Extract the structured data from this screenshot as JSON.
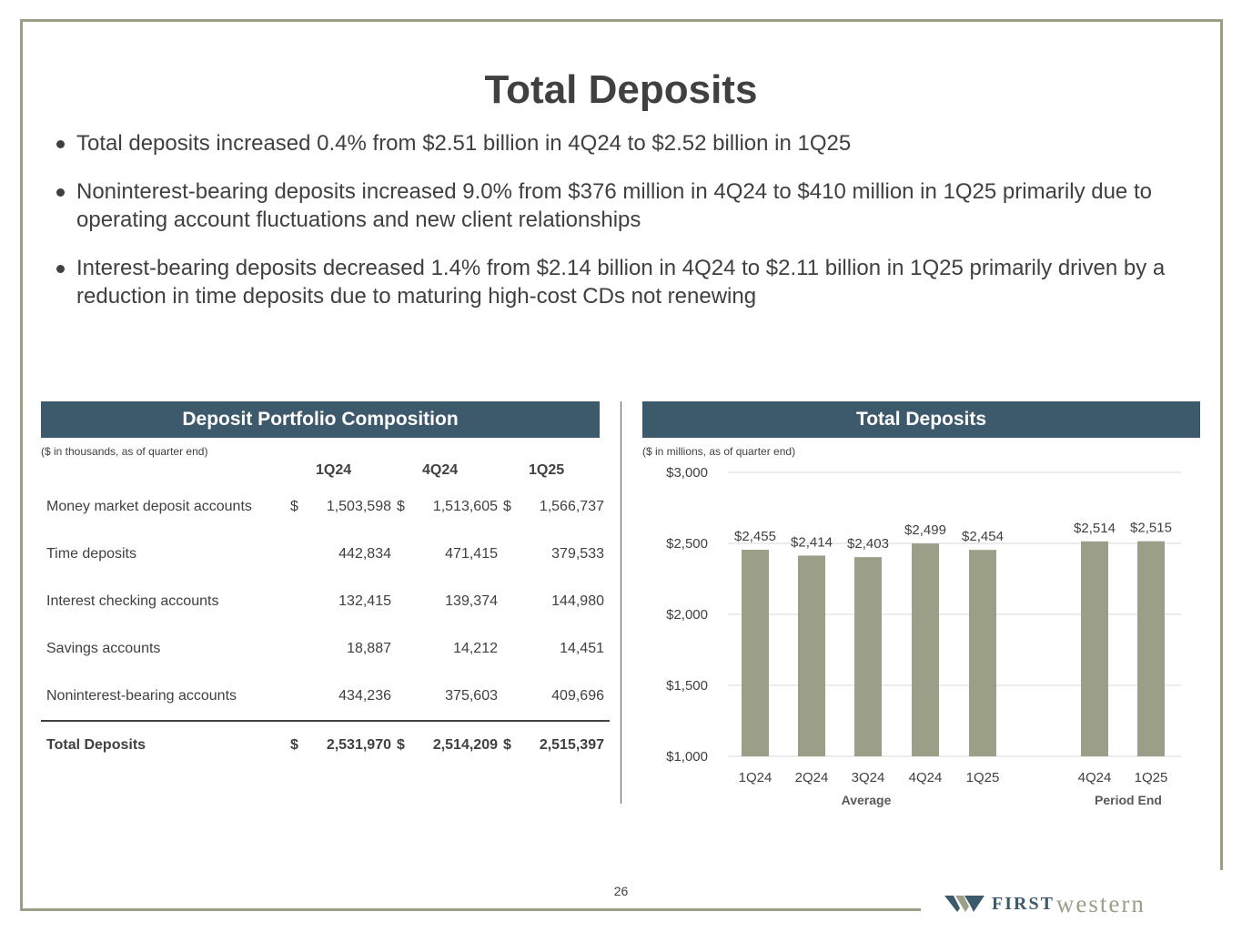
{
  "title": "Total Deposits",
  "bullets": [
    "Total deposits increased 0.4% from $2.51 billion in 4Q24 to $2.52 billion in 1Q25",
    "Noninterest-bearing deposits increased 9.0% from $376 million in 4Q24 to $410 million in 1Q25 primarily due to operating account fluctuations and new client relationships",
    "Interest-bearing deposits decreased 1.4% from $2.14 billion in 4Q24 to $2.11 billion in 1Q25 primarily driven by a reduction in time deposits due to maturing high-cost CDs not renewing"
  ],
  "left_panel": {
    "header": "Deposit Portfolio Composition",
    "note": "($ in thousands, as of quarter end)",
    "columns": [
      "1Q24",
      "4Q24",
      "1Q25"
    ],
    "currency_symbol": "$",
    "rows": [
      {
        "label": "Money market deposit accounts",
        "values": [
          "1,503,598",
          "1,513,605",
          "1,566,737"
        ]
      },
      {
        "label": "Time deposits",
        "values": [
          "442,834",
          "471,415",
          "379,533"
        ]
      },
      {
        "label": "Interest checking accounts",
        "values": [
          "132,415",
          "139,374",
          "144,980"
        ]
      },
      {
        "label": "Savings accounts",
        "values": [
          "18,887",
          "14,212",
          "14,451"
        ]
      },
      {
        "label": "Noninterest-bearing accounts",
        "values": [
          "434,236",
          "375,603",
          "409,696"
        ]
      }
    ],
    "total": {
      "label": "Total Deposits",
      "values": [
        "2,531,970",
        "2,514,209",
        "2,515,397"
      ]
    }
  },
  "right_panel": {
    "header": "Total Deposits",
    "note": "($ in millions, as of quarter end)"
  },
  "chart_data": {
    "type": "bar",
    "categories": [
      "1Q24",
      "2Q24",
      "3Q24",
      "4Q24",
      "1Q25",
      "4Q24",
      "1Q25"
    ],
    "groups": [
      {
        "label": "Average",
        "categories": [
          "1Q24",
          "2Q24",
          "3Q24",
          "4Q24",
          "1Q25"
        ],
        "values": [
          2455,
          2414,
          2403,
          2499,
          2454
        ]
      },
      {
        "label": "Period End",
        "categories": [
          "4Q24",
          "1Q25"
        ],
        "values": [
          2514,
          2515
        ]
      }
    ],
    "values": [
      2455,
      2414,
      2403,
      2499,
      2454,
      2514,
      2515
    ],
    "data_labels": [
      "$2,455",
      "$2,414",
      "$2,403",
      "$2,499",
      "$2,454",
      "$2,514",
      "$2,515"
    ],
    "ylim": [
      1000,
      3000
    ],
    "yticks": [
      1000,
      1500,
      2000,
      2500,
      3000
    ],
    "ytick_labels": [
      "$1,000",
      "$1,500",
      "$2,000",
      "$2,500",
      "$3,000"
    ],
    "bar_color": "#9b9f87",
    "grid": true
  },
  "page_number": "26",
  "logo": {
    "first": "FIRST",
    "western": "western"
  },
  "colors": {
    "accent": "#3d5a6c",
    "frame": "#9b9f87",
    "text": "#404040"
  }
}
